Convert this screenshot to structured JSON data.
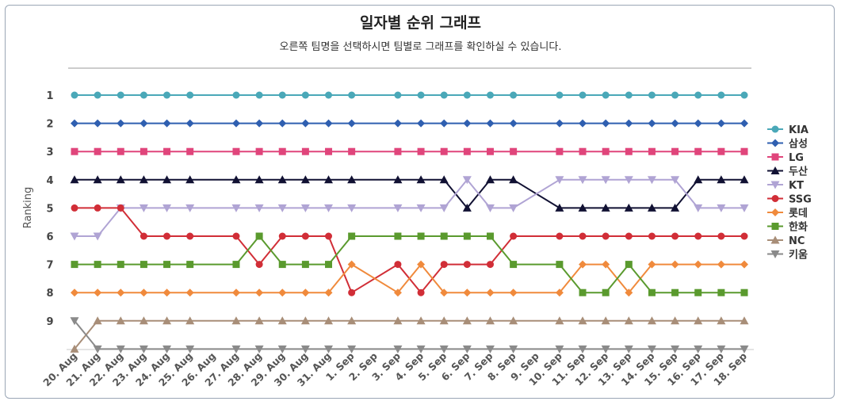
{
  "chart_data": {
    "type": "line",
    "title": "일자별 순위 그래프",
    "subtitle": "오른쪽 팀명을 선택하시면 팀별로 그래프를 확인하실 수 있습니다.",
    "xlabel": "",
    "ylabel": "Ranking",
    "ylim": [
      1,
      10
    ],
    "y_ticks": [
      "1",
      "2",
      "3",
      "4",
      "5",
      "6",
      "7",
      "8",
      "9"
    ],
    "categories": [
      "20. Aug",
      "21. Aug",
      "22. Aug",
      "23. Aug",
      "24. Aug",
      "25. Aug",
      "26. Aug",
      "27. Aug",
      "28. Aug",
      "29. Aug",
      "30. Aug",
      "31. Aug",
      "1. Sep",
      "2. Sep",
      "3. Sep",
      "4. Sep",
      "5. Sep",
      "6. Sep",
      "7. Sep",
      "8. Sep",
      "9. Sep",
      "10. Sep",
      "11. Sep",
      "12. Sep",
      "13. Sep",
      "14. Sep",
      "15. Sep",
      "16. Sep",
      "17. Sep",
      "18. Sep"
    ],
    "series": [
      {
        "name": "KIA",
        "color": "#4aa8b8",
        "marker": "circle",
        "values": [
          1,
          1,
          1,
          1,
          1,
          1,
          null,
          1,
          1,
          1,
          1,
          1,
          1,
          null,
          1,
          1,
          1,
          1,
          1,
          1,
          null,
          1,
          1,
          1,
          1,
          1,
          1,
          1,
          1,
          1
        ]
      },
      {
        "name": "삼성",
        "color": "#2f5fb0",
        "marker": "diamond",
        "values": [
          2,
          2,
          2,
          2,
          2,
          2,
          null,
          2,
          2,
          2,
          2,
          2,
          2,
          null,
          2,
          2,
          2,
          2,
          2,
          2,
          null,
          2,
          2,
          2,
          2,
          2,
          2,
          2,
          2,
          2
        ]
      },
      {
        "name": "LG",
        "color": "#e0457b",
        "marker": "square",
        "values": [
          3,
          3,
          3,
          3,
          3,
          3,
          null,
          3,
          3,
          3,
          3,
          3,
          3,
          null,
          3,
          3,
          3,
          3,
          3,
          3,
          null,
          3,
          3,
          3,
          3,
          3,
          3,
          3,
          3,
          3
        ]
      },
      {
        "name": "두산",
        "color": "#111133",
        "marker": "triangle",
        "values": [
          4,
          4,
          4,
          4,
          4,
          4,
          null,
          4,
          4,
          4,
          4,
          4,
          4,
          null,
          4,
          4,
          4,
          5,
          4,
          4,
          null,
          5,
          5,
          5,
          5,
          5,
          5,
          4,
          4,
          4
        ]
      },
      {
        "name": "KT",
        "color": "#b0a4d4",
        "marker": "triangle-down",
        "values": [
          6,
          6,
          5,
          5,
          5,
          5,
          null,
          5,
          5,
          5,
          5,
          5,
          5,
          null,
          5,
          5,
          5,
          4,
          5,
          5,
          null,
          4,
          4,
          4,
          4,
          4,
          4,
          5,
          5,
          5
        ]
      },
      {
        "name": "SSG",
        "color": "#d12e37",
        "marker": "circle",
        "values": [
          5,
          5,
          5,
          6,
          6,
          6,
          null,
          6,
          7,
          6,
          6,
          6,
          8,
          null,
          7,
          8,
          7,
          7,
          7,
          6,
          null,
          6,
          6,
          6,
          6,
          6,
          6,
          6,
          6,
          6
        ]
      },
      {
        "name": "롯데",
        "color": "#f08a3c",
        "marker": "diamond",
        "values": [
          8,
          8,
          8,
          8,
          8,
          8,
          null,
          8,
          8,
          8,
          8,
          8,
          7,
          null,
          8,
          7,
          8,
          8,
          8,
          8,
          null,
          8,
          7,
          7,
          8,
          7,
          7,
          7,
          7,
          7
        ]
      },
      {
        "name": "한화",
        "color": "#5a9a2e",
        "marker": "square",
        "values": [
          7,
          7,
          7,
          7,
          7,
          7,
          null,
          7,
          6,
          7,
          7,
          7,
          6,
          null,
          6,
          6,
          6,
          6,
          6,
          7,
          null,
          7,
          8,
          8,
          7,
          8,
          8,
          8,
          8,
          8
        ]
      },
      {
        "name": "NC",
        "color": "#a88e78",
        "marker": "triangle",
        "values": [
          10,
          9,
          9,
          9,
          9,
          9,
          null,
          9,
          9,
          9,
          9,
          9,
          9,
          null,
          9,
          9,
          9,
          9,
          9,
          9,
          null,
          9,
          9,
          9,
          9,
          9,
          9,
          9,
          9,
          9
        ]
      },
      {
        "name": "키움",
        "color": "#8a8a8a",
        "marker": "triangle-down",
        "values": [
          9,
          10,
          10,
          10,
          10,
          10,
          null,
          10,
          10,
          10,
          10,
          10,
          10,
          null,
          10,
          10,
          10,
          10,
          10,
          10,
          null,
          10,
          10,
          10,
          10,
          10,
          10,
          10,
          10,
          10
        ]
      }
    ]
  }
}
